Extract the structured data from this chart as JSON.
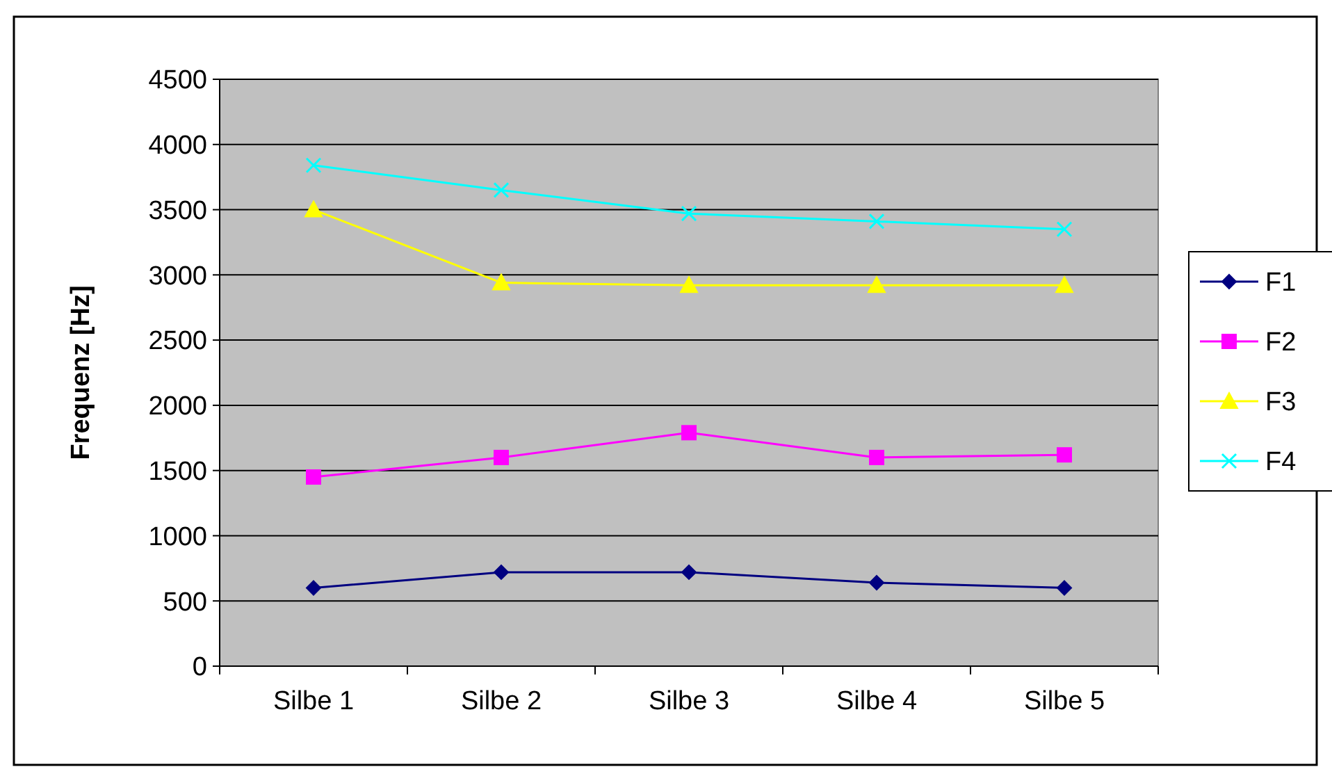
{
  "chart_data": {
    "type": "line",
    "ylabel": "Frequenz [Hz]",
    "categories": [
      "Silbe 1",
      "Silbe 2",
      "Silbe 3",
      "Silbe 4",
      "Silbe 5"
    ],
    "series": [
      {
        "name": "F1",
        "color": "#000080",
        "marker": "diamond",
        "values": [
          600,
          720,
          720,
          640,
          600
        ]
      },
      {
        "name": "F2",
        "color": "#ff00ff",
        "marker": "square",
        "values": [
          1450,
          1600,
          1790,
          1600,
          1620
        ]
      },
      {
        "name": "F3",
        "color": "#ffff00",
        "marker": "triangle",
        "values": [
          3500,
          2940,
          2920,
          2920,
          2920
        ]
      },
      {
        "name": "F4",
        "color": "#00ffff",
        "marker": "cross",
        "values": [
          3840,
          3650,
          3470,
          3410,
          3350
        ]
      }
    ],
    "ylim": [
      0,
      4500
    ],
    "yticks": [
      0,
      500,
      1000,
      1500,
      2000,
      2500,
      3000,
      3500,
      4000,
      4500
    ],
    "grid": "y",
    "legend": "right",
    "line_style": "solid"
  }
}
